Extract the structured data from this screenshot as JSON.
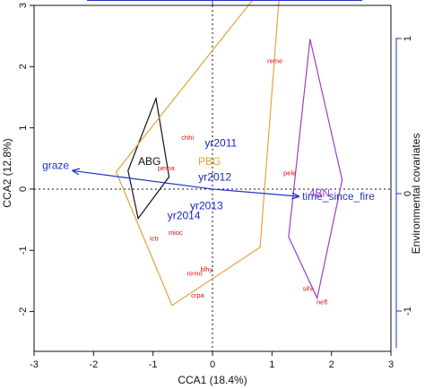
{
  "chart_data": {
    "type": "scatter",
    "xlabel": "CCA1 (18.4%)",
    "ylabel": "CCA2 (12.8%)",
    "y2label": "Environmental covariates",
    "xlim": [
      -3,
      3
    ],
    "ylim": [
      -2.65,
      3.0
    ],
    "xticks": [
      -3,
      -2,
      -1,
      0,
      1,
      2,
      3
    ],
    "yticks": [
      -2,
      -1,
      0,
      1,
      2,
      3
    ],
    "y2ticks": [
      -1,
      0,
      1
    ],
    "grid": false,
    "reference_lines": {
      "x": 0,
      "y": 0
    },
    "colors": {
      "species": "#dd1111",
      "years": "#1a25c8",
      "ABG": "#111111",
      "PBG": "#e3a53a",
      "4BN": "#9a40c8",
      "covariates": "#2233cc"
    },
    "species_points": [
      {
        "label": "reme",
        "x": 1.05,
        "y": 2.1
      },
      {
        "label": "chhi",
        "x": -0.42,
        "y": 0.85
      },
      {
        "label": "pema",
        "x": -0.78,
        "y": 0.35
      },
      {
        "label": "pele",
        "x": 1.3,
        "y": 0.27
      },
      {
        "label": "mioc",
        "x": -0.62,
        "y": -0.7
      },
      {
        "label": "ictr",
        "x": -0.98,
        "y": -0.8
      },
      {
        "label": "remo",
        "x": -0.3,
        "y": -1.37
      },
      {
        "label": "blhy",
        "x": -0.1,
        "y": -1.3
      },
      {
        "label": "crpa",
        "x": -0.25,
        "y": -1.73
      },
      {
        "label": "sihi",
        "x": 1.6,
        "y": -1.62
      },
      {
        "label": "nefl",
        "x": 1.84,
        "y": -1.84
      }
    ],
    "year_labels": [
      {
        "label": "yr2011",
        "x": 0.14,
        "y": 0.75
      },
      {
        "label": "yr2012",
        "x": 0.04,
        "y": 0.2
      },
      {
        "label": "yr2013",
        "x": -0.1,
        "y": -0.27
      },
      {
        "label": "yr2014",
        "x": -0.48,
        "y": -0.43
      }
    ],
    "group_labels": [
      {
        "label": "ABG",
        "x": -1.06,
        "y": 0.45
      },
      {
        "label": "PBG",
        "x": -0.05,
        "y": 0.45
      },
      {
        "label": "4BN",
        "x": 1.8,
        "y": -0.07
      }
    ],
    "hulls": [
      {
        "name": "ABG",
        "points": [
          [
            -0.95,
            1.48
          ],
          [
            -0.73,
            0.2
          ],
          [
            -1.25,
            -0.48
          ],
          [
            -1.42,
            0.3
          ]
        ]
      },
      {
        "name": "PBG",
        "points": [
          [
            0.7,
            3.12
          ],
          [
            1.12,
            3.12
          ],
          [
            0.8,
            -0.95
          ],
          [
            -0.68,
            -1.9
          ],
          [
            -1.62,
            0.28
          ]
        ]
      },
      {
        "name": "4BN",
        "points": [
          [
            1.64,
            2.45
          ],
          [
            2.18,
            0.15
          ],
          [
            1.76,
            -1.78
          ],
          [
            1.28,
            -0.78
          ]
        ]
      }
    ],
    "vectors": [
      {
        "label": "graze",
        "x": -2.35,
        "y": 0.3
      },
      {
        "label": "time_since_fire",
        "x": 1.45,
        "y": -0.12
      }
    ]
  }
}
